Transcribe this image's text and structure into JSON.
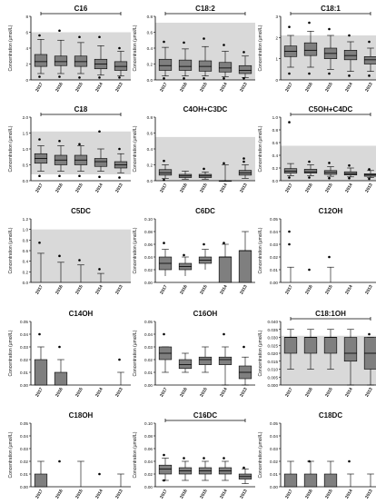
{
  "figure": {
    "ylabel": "Concentration (µmol/L)",
    "years": [
      "2017",
      "2016",
      "2015",
      "2014",
      "2013"
    ]
  },
  "chart_data": [
    {
      "type": "box",
      "title": "C16",
      "ylim": [
        0,
        8
      ],
      "yticks": [
        0,
        2,
        4,
        6,
        8
      ],
      "ref": [
        0,
        6
      ],
      "sig": true,
      "sig_mark": "*",
      "kind": "box",
      "boxes": [
        {
          "min": 0.8,
          "q1": 1.7,
          "med": 2.3,
          "q3": 3.2,
          "max": 5.1,
          "out": [
            0.4,
            5.6
          ]
        },
        {
          "min": 0.8,
          "q1": 1.8,
          "med": 2.3,
          "q3": 3.0,
          "max": 5.0,
          "out": [
            0.4,
            6.2
          ]
        },
        {
          "min": 0.8,
          "q1": 1.7,
          "med": 2.3,
          "q3": 3.0,
          "max": 4.7,
          "out": [
            0.3,
            5.4
          ]
        },
        {
          "min": 0.6,
          "q1": 1.4,
          "med": 2.0,
          "q3": 2.6,
          "max": 4.3,
          "out": [
            0.3,
            5.4
          ]
        },
        {
          "min": 0.5,
          "q1": 1.2,
          "med": 1.7,
          "q3": 2.3,
          "max": 3.6,
          "out": [
            0.3,
            4.0
          ]
        }
      ]
    },
    {
      "type": "box",
      "title": "C18:2",
      "ylim": [
        0,
        0.8
      ],
      "yticks": [
        0,
        0.2,
        0.4,
        0.6,
        0.8
      ],
      "ref": [
        0,
        0.72
      ],
      "sig": true,
      "sig_mark": "*",
      "kind": "box",
      "boxes": [
        {
          "min": 0.05,
          "q1": 0.12,
          "med": 0.18,
          "q3": 0.26,
          "max": 0.41,
          "out": [
            0.02,
            0.48
          ]
        },
        {
          "min": 0.05,
          "q1": 0.12,
          "med": 0.17,
          "q3": 0.25,
          "max": 0.39,
          "out": [
            0.02,
            0.47
          ]
        },
        {
          "min": 0.05,
          "q1": 0.11,
          "med": 0.17,
          "q3": 0.24,
          "max": 0.42,
          "out": [
            0.02,
            0.52
          ]
        },
        {
          "min": 0.04,
          "q1": 0.1,
          "med": 0.15,
          "q3": 0.22,
          "max": 0.36,
          "out": [
            0.02,
            0.44
          ]
        },
        {
          "min": 0.03,
          "q1": 0.08,
          "med": 0.12,
          "q3": 0.18,
          "max": 0.3,
          "out": [
            0.02,
            0.35
          ]
        }
      ]
    },
    {
      "type": "box",
      "title": "C18:1",
      "ylim": [
        0,
        3
      ],
      "yticks": [
        0,
        1,
        2,
        3
      ],
      "ref": [
        0,
        2.1
      ],
      "sig": true,
      "sig_mark": "*",
      "kind": "box",
      "boxes": [
        {
          "min": 0.6,
          "q1": 1.1,
          "med": 1.35,
          "q3": 1.6,
          "max": 2.1,
          "out": [
            0.3,
            2.5
          ]
        },
        {
          "min": 0.6,
          "q1": 1.15,
          "med": 1.4,
          "q3": 1.75,
          "max": 2.3,
          "out": [
            0.3,
            2.7
          ]
        },
        {
          "min": 0.5,
          "q1": 1.0,
          "med": 1.25,
          "q3": 1.5,
          "max": 2.1,
          "out": [
            0.3,
            2.4
          ]
        },
        {
          "min": 0.4,
          "q1": 0.95,
          "med": 1.15,
          "q3": 1.4,
          "max": 1.8,
          "out": [
            0.2,
            2.1
          ]
        },
        {
          "min": 0.4,
          "q1": 0.75,
          "med": 0.95,
          "q3": 1.1,
          "max": 1.5,
          "out": [
            0.2,
            1.8
          ]
        }
      ]
    },
    {
      "type": "box",
      "title": "C18",
      "ylim": [
        0,
        2.0
      ],
      "yticks": [
        0,
        0.5,
        1.0,
        1.5,
        2.0
      ],
      "ref": [
        0.2,
        1.55
      ],
      "sig": true,
      "sig_mark": "*",
      "kind": "box",
      "boxes": [
        {
          "min": 0.3,
          "q1": 0.55,
          "med": 0.7,
          "q3": 0.85,
          "max": 1.1,
          "out": [
            0.15,
            1.3
          ]
        },
        {
          "min": 0.3,
          "q1": 0.5,
          "med": 0.65,
          "q3": 0.8,
          "max": 1.1,
          "out": [
            0.15,
            1.25
          ]
        },
        {
          "min": 0.3,
          "q1": 0.5,
          "med": 0.65,
          "q3": 0.8,
          "max": 1.1,
          "out": [
            0.15,
            1.15
          ]
        },
        {
          "min": 0.3,
          "q1": 0.45,
          "med": 0.6,
          "q3": 0.7,
          "max": 1.0,
          "out": [
            0.12,
            1.55
          ]
        },
        {
          "min": 0.25,
          "q1": 0.4,
          "med": 0.5,
          "q3": 0.6,
          "max": 0.85,
          "out": [
            0.1,
            1.0
          ]
        }
      ]
    },
    {
      "type": "box",
      "title": "C4OH+C3DC",
      "ylim": [
        0,
        0.8
      ],
      "yticks": [
        0,
        0.2,
        0.4,
        0.6,
        0.8
      ],
      "ref": [
        0,
        0.55
      ],
      "sig": false,
      "kind": "box",
      "boxes": [
        {
          "min": 0.03,
          "q1": 0.07,
          "med": 0.1,
          "q3": 0.14,
          "max": 0.2,
          "out": [
            0.01,
            0.25
          ]
        },
        {
          "min": 0.02,
          "q1": 0.04,
          "med": 0.06,
          "q3": 0.08,
          "max": 0.12,
          "out": []
        },
        {
          "min": 0.02,
          "q1": 0.04,
          "med": 0.06,
          "q3": 0.08,
          "max": 0.11,
          "out": [
            0.15
          ]
        },
        {
          "min": 0.0,
          "q1": 0.0,
          "med": 0.0,
          "q3": 0.0,
          "max": 0.2,
          "out": [
            0.22
          ]
        },
        {
          "min": 0.03,
          "q1": 0.07,
          "med": 0.1,
          "q3": 0.13,
          "max": 0.2,
          "out": [
            0.24,
            0.28
          ]
        }
      ]
    },
    {
      "type": "box",
      "title": "C5OH+C4DC",
      "ylim": [
        0,
        1.0
      ],
      "yticks": [
        0,
        0.2,
        0.4,
        0.6,
        0.8,
        1.0
      ],
      "ref": [
        0,
        0.55
      ],
      "sig": true,
      "sig_mark": "*",
      "kind": "box",
      "boxes": [
        {
          "min": 0.08,
          "q1": 0.12,
          "med": 0.15,
          "q3": 0.19,
          "max": 0.27,
          "out": [
            0.05,
            0.92
          ]
        },
        {
          "min": 0.08,
          "q1": 0.12,
          "med": 0.14,
          "q3": 0.18,
          "max": 0.25,
          "out": [
            0.05,
            0.3
          ]
        },
        {
          "min": 0.07,
          "q1": 0.1,
          "med": 0.13,
          "q3": 0.16,
          "max": 0.22,
          "out": [
            0.04,
            0.28
          ]
        },
        {
          "min": 0.06,
          "q1": 0.09,
          "med": 0.11,
          "q3": 0.14,
          "max": 0.2,
          "out": [
            0.04,
            0.24
          ]
        },
        {
          "min": 0.05,
          "q1": 0.07,
          "med": 0.09,
          "q3": 0.11,
          "max": 0.16,
          "out": [
            0.03,
            0.18
          ]
        }
      ]
    },
    {
      "type": "bar",
      "title": "C5DC",
      "ylim": [
        0,
        1.2
      ],
      "yticks": [
        0,
        0.2,
        0.4,
        0.6,
        0.8,
        1.0,
        1.2
      ],
      "ref": [
        0,
        1.0
      ],
      "sig": false,
      "kind": "bar",
      "boxes": [
        {
          "top": 0,
          "err": 0.55,
          "out": [
            0.75
          ]
        },
        {
          "top": 0,
          "err": 0.38,
          "out": [
            0.5
          ]
        },
        {
          "top": 0,
          "err": 0.33,
          "out": [
            0.42
          ]
        },
        {
          "top": 0,
          "err": 0.17,
          "out": [
            0.25
          ]
        },
        {
          "top": 0,
          "err": 0,
          "out": []
        }
      ]
    },
    {
      "type": "bar",
      "title": "C6DC",
      "ylim": [
        0,
        0.1
      ],
      "yticks": [
        0,
        0.02,
        0.04,
        0.06,
        0.08,
        0.1
      ],
      "ref": null,
      "sig": false,
      "kind": "floatbar",
      "boxes": [
        {
          "lo": 0.02,
          "med": 0.03,
          "hi": 0.04,
          "wlo": 0.01,
          "whi": 0.052,
          "out": [
            0.062
          ]
        },
        {
          "lo": 0.02,
          "med": 0.025,
          "hi": 0.03,
          "wlo": 0.01,
          "whi": 0.04,
          "out": [
            0.043
          ]
        },
        {
          "lo": 0.03,
          "med": 0.035,
          "hi": 0.04,
          "wlo": 0.02,
          "whi": 0.052,
          "out": [
            0.06
          ]
        },
        {
          "lo": 0.0,
          "med": 0.04,
          "hi": 0.04,
          "wlo": 0.0,
          "whi": 0.06,
          "out": [
            0.062
          ]
        },
        {
          "lo": 0.0,
          "med": 0.05,
          "hi": 0.05,
          "wlo": 0.0,
          "whi": 0.08,
          "out": []
        }
      ]
    },
    {
      "type": "bar",
      "title": "C12OH",
      "ylim": [
        0,
        0.05
      ],
      "yticks": [
        0,
        0.01,
        0.02,
        0.03,
        0.04,
        0.05
      ],
      "ref": null,
      "sig": false,
      "kind": "bar",
      "boxes": [
        {
          "top": 0,
          "err": 0.012,
          "out": [
            0.04,
            0.03
          ]
        },
        {
          "top": 0,
          "err": 0,
          "out": [
            0.01
          ]
        },
        {
          "top": 0,
          "err": 0.012,
          "out": [
            0.02
          ]
        },
        {
          "top": 0,
          "err": 0,
          "out": []
        },
        {
          "top": 0,
          "err": 0,
          "out": []
        }
      ]
    },
    {
      "type": "bar",
      "title": "C14OH",
      "ylim": [
        0,
        0.05
      ],
      "yticks": [
        0,
        0.01,
        0.02,
        0.03,
        0.04,
        0.05
      ],
      "ref": null,
      "sig": false,
      "kind": "bar",
      "boxes": [
        {
          "top": 0.02,
          "err": 0.03,
          "out": [
            0.04
          ]
        },
        {
          "top": 0.01,
          "err": 0.02,
          "out": [
            0.03
          ]
        },
        {
          "top": 0,
          "err": 0,
          "out": []
        },
        {
          "top": 0,
          "err": 0,
          "out": []
        },
        {
          "top": 0,
          "err": 0.01,
          "out": [
            0.02
          ]
        }
      ]
    },
    {
      "type": "box",
      "title": "C16OH",
      "ylim": [
        0,
        0.05
      ],
      "yticks": [
        0,
        0.01,
        0.02,
        0.03,
        0.04,
        0.05
      ],
      "ref": null,
      "sig": false,
      "kind": "box",
      "boxes": [
        {
          "min": 0.01,
          "q1": 0.02,
          "med": 0.025,
          "q3": 0.03,
          "max": 0.03,
          "out": [
            0.04
          ]
        },
        {
          "min": 0.01,
          "q1": 0.013,
          "med": 0.016,
          "q3": 0.02,
          "max": 0.025,
          "out": []
        },
        {
          "min": 0.01,
          "q1": 0.016,
          "med": 0.02,
          "q3": 0.022,
          "max": 0.03,
          "out": []
        },
        {
          "min": 0.0,
          "q1": 0.016,
          "med": 0.02,
          "q3": 0.022,
          "max": 0.03,
          "out": [
            0.04
          ]
        },
        {
          "min": 0.0,
          "q1": 0.005,
          "med": 0.01,
          "q3": 0.015,
          "max": 0.022,
          "out": [
            0.03
          ]
        }
      ]
    },
    {
      "type": "box",
      "title": "C18:1OH",
      "ylim": [
        0,
        0.04
      ],
      "yticks": [
        0,
        0.005,
        0.01,
        0.015,
        0.02,
        0.025,
        0.03,
        0.035,
        0.04
      ],
      "ref": [
        0,
        0.031
      ],
      "sig": true,
      "sig_mark": "",
      "kind": "box",
      "boxes": [
        {
          "min": 0.01,
          "q1": 0.02,
          "med": 0.03,
          "q3": 0.03,
          "max": 0.035,
          "out": []
        },
        {
          "min": 0.01,
          "q1": 0.02,
          "med": 0.03,
          "q3": 0.03,
          "max": 0.035,
          "out": []
        },
        {
          "min": 0.01,
          "q1": 0.02,
          "med": 0.03,
          "q3": 0.03,
          "max": 0.035,
          "out": []
        },
        {
          "min": 0.0,
          "q1": 0.015,
          "med": 0.02,
          "q3": 0.03,
          "max": 0.035,
          "out": []
        },
        {
          "min": 0.0,
          "q1": 0.01,
          "med": 0.02,
          "q3": 0.03,
          "max": 0.03,
          "out": [
            0.032
          ]
        }
      ]
    },
    {
      "type": "bar",
      "title": "C18OH",
      "ylim": [
        0,
        0.05
      ],
      "yticks": [
        0,
        0.01,
        0.02,
        0.03,
        0.04,
        0.05
      ],
      "ref": null,
      "sig": false,
      "kind": "bar",
      "boxes": [
        {
          "top": 0.01,
          "err": 0.02,
          "out": []
        },
        {
          "top": 0,
          "err": 0,
          "out": [
            0.02
          ]
        },
        {
          "top": 0,
          "err": 0.02,
          "out": []
        },
        {
          "top": 0,
          "err": 0,
          "out": [
            0.01
          ]
        },
        {
          "top": 0,
          "err": 0.01,
          "out": []
        }
      ]
    },
    {
      "type": "box",
      "title": "C16DC",
      "ylim": [
        0,
        0.1
      ],
      "yticks": [
        0,
        0.02,
        0.04,
        0.06,
        0.08,
        0.1
      ],
      "ref": null,
      "sig": true,
      "sig_mark": "*",
      "kind": "box",
      "boxes": [
        {
          "min": 0.01,
          "q1": 0.02,
          "med": 0.028,
          "q3": 0.034,
          "max": 0.045,
          "out": [
            0.05,
            0.01
          ]
        },
        {
          "min": 0.01,
          "q1": 0.02,
          "med": 0.025,
          "q3": 0.03,
          "max": 0.04,
          "out": [
            0.045
          ]
        },
        {
          "min": 0.01,
          "q1": 0.02,
          "med": 0.025,
          "q3": 0.03,
          "max": 0.04,
          "out": [
            0.045
          ]
        },
        {
          "min": 0.01,
          "q1": 0.02,
          "med": 0.025,
          "q3": 0.03,
          "max": 0.04,
          "out": [
            0.045
          ]
        },
        {
          "min": 0.005,
          "q1": 0.012,
          "med": 0.016,
          "q3": 0.02,
          "max": 0.028,
          "out": [
            0.03
          ]
        }
      ]
    },
    {
      "type": "bar",
      "title": "C18DC",
      "ylim": [
        0,
        0.05
      ],
      "yticks": [
        0,
        0.01,
        0.02,
        0.03,
        0.04,
        0.05
      ],
      "ref": null,
      "sig": false,
      "kind": "bar",
      "boxes": [
        {
          "top": 0.01,
          "err": 0.02,
          "out": []
        },
        {
          "top": 0.01,
          "err": 0.02,
          "out": [
            0.02
          ]
        },
        {
          "top": 0.01,
          "err": 0.02,
          "out": []
        },
        {
          "top": 0,
          "err": 0.01,
          "out": [
            0.02
          ]
        },
        {
          "top": 0,
          "err": 0.01,
          "out": []
        }
      ]
    }
  ]
}
